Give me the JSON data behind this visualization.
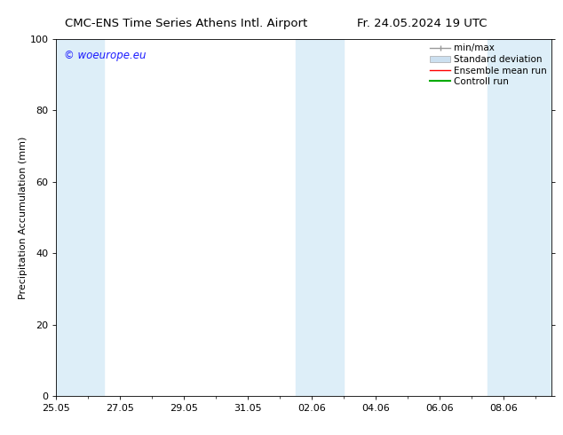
{
  "title_left": "CMC-ENS Time Series Athens Intl. Airport",
  "title_right": "Fr. 24.05.2024 19 UTC",
  "ylabel": "Precipitation Accumulation (mm)",
  "ylim": [
    0,
    100
  ],
  "yticks": [
    0,
    20,
    40,
    60,
    80,
    100
  ],
  "x_tick_labels": [
    "25.05",
    "27.05",
    "29.05",
    "31.05",
    "02.06",
    "04.06",
    "06.06",
    "08.06"
  ],
  "x_tick_positions": [
    0,
    2,
    4,
    6,
    8,
    10,
    12,
    14
  ],
  "x_min": 0,
  "x_max": 15.5,
  "shaded_bands": [
    {
      "x_start": 0.0,
      "x_end": 1.5,
      "color": "#ddeef8"
    },
    {
      "x_start": 7.5,
      "x_end": 9.0,
      "color": "#ddeef8"
    },
    {
      "x_start": 13.5,
      "x_end": 15.5,
      "color": "#ddeef8"
    }
  ],
  "watermark": "© woeurope.eu",
  "watermark_color": "#1a1aff",
  "legend_labels": [
    "min/max",
    "Standard deviation",
    "Ensemble mean run",
    "Controll run"
  ],
  "legend_colors": [
    "#999999",
    "#cce0f0",
    "#ff0000",
    "#00aa00"
  ],
  "background_color": "#ffffff",
  "plot_bg_color": "#ffffff",
  "font_size": 8,
  "title_fontsize": 9.5
}
